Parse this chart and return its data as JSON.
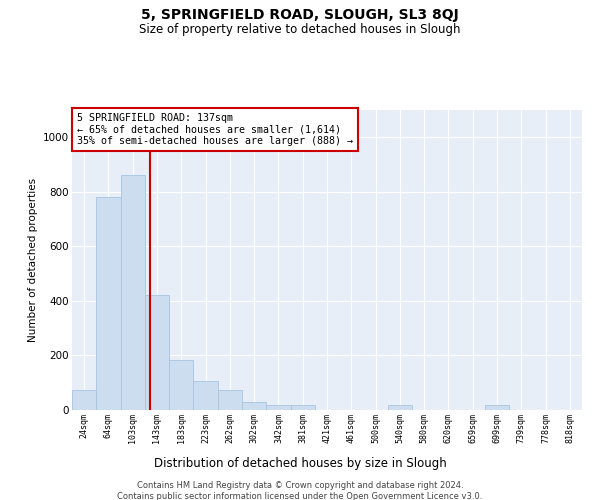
{
  "title": "5, SPRINGFIELD ROAD, SLOUGH, SL3 8QJ",
  "subtitle": "Size of property relative to detached houses in Slough",
  "xlabel": "Distribution of detached houses by size in Slough",
  "ylabel": "Number of detached properties",
  "bar_labels": [
    "24sqm",
    "64sqm",
    "103sqm",
    "143sqm",
    "183sqm",
    "223sqm",
    "262sqm",
    "302sqm",
    "342sqm",
    "381sqm",
    "421sqm",
    "461sqm",
    "500sqm",
    "540sqm",
    "580sqm",
    "620sqm",
    "659sqm",
    "699sqm",
    "739sqm",
    "778sqm",
    "818sqm"
  ],
  "bar_values": [
    75,
    780,
    860,
    420,
    185,
    105,
    75,
    30,
    20,
    20,
    0,
    0,
    0,
    20,
    0,
    0,
    0,
    20,
    0,
    0,
    0
  ],
  "bar_color": "#cdddf0",
  "bar_edge_color": "#a8c4e0",
  "vline_color": "#cc0000",
  "vline_x_index": 2.72,
  "annotation_text": "5 SPRINGFIELD ROAD: 137sqm\n← 65% of detached houses are smaller (1,614)\n35% of semi-detached houses are larger (888) →",
  "annotation_box_color": "white",
  "annotation_box_edge_color": "#cc0000",
  "ylim": [
    0,
    1100
  ],
  "yticks": [
    0,
    200,
    400,
    600,
    800,
    1000
  ],
  "background_color": "#e8eef8",
  "grid_color": "#ffffff",
  "footer_line1": "Contains HM Land Registry data © Crown copyright and database right 2024.",
  "footer_line2": "Contains public sector information licensed under the Open Government Licence v3.0."
}
